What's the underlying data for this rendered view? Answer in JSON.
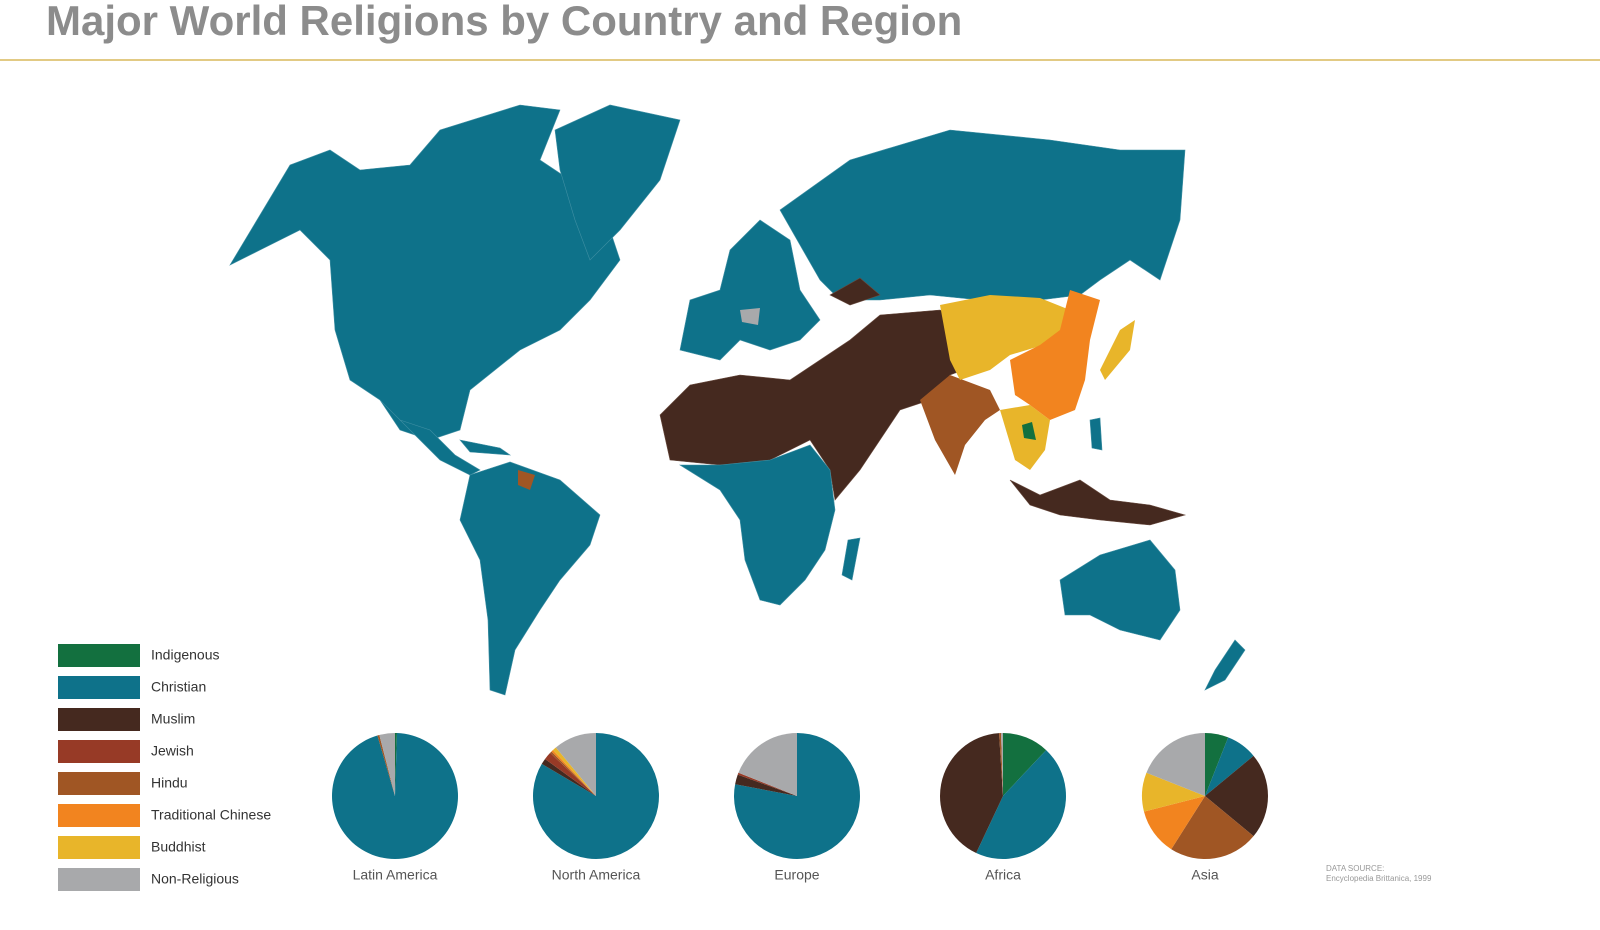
{
  "title": "Major World Religions by Country and Region",
  "legend": {
    "categories": [
      "Indigenous",
      "Christian",
      "Muslim",
      "Jewish",
      "Hindu",
      "Traditional Chinese",
      "Buddhist",
      "Non-Religious"
    ],
    "colors": [
      "#13703f",
      "#0e728a",
      "#45291f",
      "#973a26",
      "#a05624",
      "#f2841f",
      "#e8b52a",
      "#a8a9ab"
    ]
  },
  "source": [
    "DATA SOURCE:",
    "Encyclopedia Brittanica, 1999"
  ],
  "chart_data": [
    {
      "type": "pie",
      "label": "Latin America",
      "values": [
        0.5,
        95,
        0,
        0,
        0.5,
        0,
        0,
        4
      ]
    },
    {
      "type": "pie",
      "label": "North America",
      "values": [
        0,
        83.5,
        1.5,
        2,
        0.5,
        0.5,
        1,
        11
      ]
    },
    {
      "type": "pie",
      "label": "Europe",
      "values": [
        0,
        78,
        2.5,
        0.5,
        0,
        0,
        0,
        19
      ]
    },
    {
      "type": "pie",
      "label": "Africa",
      "values": [
        12,
        45,
        42,
        0,
        0.5,
        0,
        0,
        0.5
      ]
    },
    {
      "type": "pie",
      "label": "Asia",
      "values": [
        6,
        8,
        22,
        0,
        23,
        12,
        10,
        19
      ]
    }
  ]
}
